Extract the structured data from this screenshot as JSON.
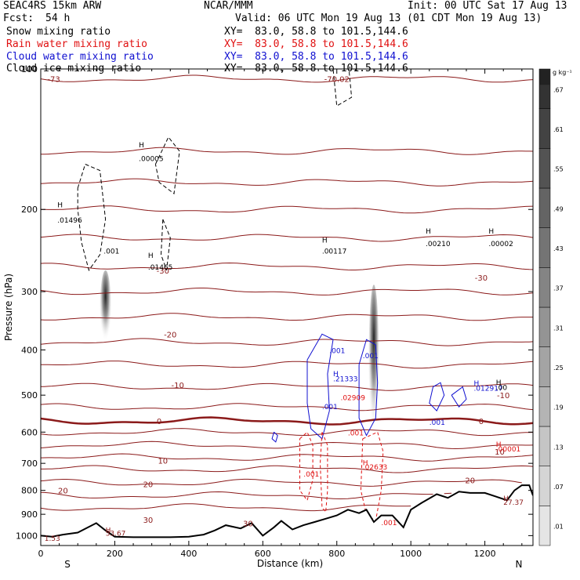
{
  "header": {
    "model": "SEAC4RS 15km ARW",
    "org": "NCAR/MMM",
    "init": "Init: 00 UTC Sat 17 Aug 13",
    "fcst_label": "Fcst:",
    "fcst_value": "54 h",
    "valid": "Valid: 06 UTC Mon 19 Aug 13 (01 CDT Mon 19 Aug 13)",
    "fields": [
      {
        "name": "Snow mixing ratio",
        "xy": "XY=  83.0, 58.8 to 101.5,144.6",
        "color": "#000000"
      },
      {
        "name": "Rain water mixing ratio",
        "xy": "XY=  83.0, 58.8 to 101.5,144.6",
        "color": "#e01010"
      },
      {
        "name": "Cloud water mixing ratio",
        "xy": "XY=  83.0, 58.8 to 101.5,144.6",
        "color": "#1010d0"
      },
      {
        "name": "Cloud ice mixing ratio",
        "xy": "XY=  83.0, 58.8 to 101.5,144.6",
        "color": "#000000"
      }
    ]
  },
  "chart_data": {
    "type": "line",
    "xlabel": "Distance (km)",
    "ylabel": "Pressure (hPa)",
    "xlim": [
      0,
      1330
    ],
    "ylim": [
      1050,
      100
    ],
    "y_scale": "log",
    "xticks": [
      0,
      200,
      400,
      600,
      800,
      1000,
      1200
    ],
    "yticks": [
      100,
      200,
      300,
      400,
      500,
      600,
      700,
      800,
      900,
      1000
    ],
    "ytick_labels": [
      "100",
      "200",
      "300",
      "400",
      "500",
      "600",
      "700",
      "800",
      "900",
      "1000"
    ],
    "xticks_minor_step": 50,
    "end_labels": {
      "left": "S",
      "right": "N"
    },
    "temperature_labels": [
      {
        "x": 35,
        "p": 105,
        "text": "-73"
      },
      {
        "x": 800,
        "p": 105,
        "text": "-70.02"
      },
      {
        "x": 330,
        "p": 270,
        "text": "-30"
      },
      {
        "x": 1190,
        "p": 280,
        "text": "-30"
      },
      {
        "x": 350,
        "p": 370,
        "text": "-20"
      },
      {
        "x": 370,
        "p": 475,
        "text": "-10"
      },
      {
        "x": 1250,
        "p": 500,
        "text": "-10"
      },
      {
        "x": 320,
        "p": 568,
        "text": "0"
      },
      {
        "x": 1190,
        "p": 568,
        "text": "0"
      },
      {
        "x": 330,
        "p": 690,
        "text": "10"
      },
      {
        "x": 1240,
        "p": 660,
        "text": "10"
      },
      {
        "x": 290,
        "p": 775,
        "text": "20"
      },
      {
        "x": 1160,
        "p": 760,
        "text": "20"
      },
      {
        "x": 60,
        "p": 800,
        "text": "20"
      },
      {
        "x": 290,
        "p": 925,
        "text": "30"
      },
      {
        "x": 560,
        "p": 940,
        "text": "30"
      }
    ],
    "temperature_isotherm_p_left": [
      105,
      150,
      175,
      200,
      230,
      265,
      300,
      340,
      385,
      430,
      480,
      530,
      568,
      600,
      640,
      680,
      720,
      770,
      820,
      870
    ],
    "freezing_level_p": 568,
    "terrain": {
      "x": [
        0,
        30,
        60,
        100,
        150,
        175,
        200,
        250,
        300,
        350,
        400,
        440,
        470,
        500,
        540,
        570,
        600,
        630,
        650,
        680,
        710,
        740,
        770,
        800,
        830,
        860,
        880,
        900,
        920,
        950,
        980,
        1000,
        1030,
        1070,
        1100,
        1130,
        1160,
        1200,
        1230,
        1260,
        1280,
        1300,
        1320,
        1330
      ],
      "p": [
        1000,
        1005,
        995,
        985,
        940,
        975,
        1005,
        1008,
        1008,
        1008,
        1005,
        995,
        975,
        950,
        965,
        940,
        1000,
        960,
        930,
        970,
        950,
        935,
        920,
        905,
        880,
        895,
        880,
        935,
        905,
        905,
        960,
        880,
        850,
        815,
        830,
        805,
        810,
        810,
        825,
        840,
        800,
        780,
        780,
        820
      ]
    },
    "snow_plumes": [
      {
        "x": 175,
        "p_top": 270,
        "p_bottom": 390,
        "width_km": 30
      },
      {
        "x": 900,
        "p_top": 290,
        "p_bottom": 620,
        "width_km": 28
      }
    ],
    "cloud_ice_contours": [
      {
        "points": [
          [
            100,
            180
          ],
          [
            120,
            160
          ],
          [
            160,
            165
          ],
          [
            175,
            210
          ],
          [
            160,
            250
          ],
          [
            130,
            270
          ],
          [
            110,
            235
          ],
          [
            100,
            200
          ],
          [
            100,
            180
          ]
        ]
      },
      {
        "points": [
          [
            310,
            160
          ],
          [
            345,
            140
          ],
          [
            375,
            150
          ],
          [
            360,
            185
          ],
          [
            320,
            175
          ],
          [
            310,
            160
          ]
        ]
      },
      {
        "points": [
          [
            790,
            100
          ],
          [
            830,
            95
          ],
          [
            840,
            115
          ],
          [
            800,
            120
          ],
          [
            790,
            100
          ]
        ]
      },
      {
        "points": [
          [
            330,
            210
          ],
          [
            350,
            230
          ],
          [
            340,
            270
          ],
          [
            325,
            250
          ],
          [
            330,
            210
          ]
        ]
      }
    ],
    "cloud_water_contours": [
      {
        "points": [
          [
            720,
            420
          ],
          [
            760,
            370
          ],
          [
            790,
            380
          ],
          [
            775,
            450
          ],
          [
            780,
            540
          ],
          [
            760,
            620
          ],
          [
            730,
            590
          ],
          [
            720,
            520
          ],
          [
            720,
            420
          ]
        ]
      },
      {
        "points": [
          [
            860,
            430
          ],
          [
            880,
            380
          ],
          [
            905,
            390
          ],
          [
            910,
            470
          ],
          [
            905,
            560
          ],
          [
            880,
            610
          ],
          [
            860,
            560
          ],
          [
            860,
            430
          ]
        ]
      },
      {
        "points": [
          [
            1060,
            480
          ],
          [
            1080,
            470
          ],
          [
            1090,
            500
          ],
          [
            1070,
            540
          ],
          [
            1050,
            520
          ],
          [
            1060,
            480
          ]
        ]
      },
      {
        "points": [
          [
            1110,
            500
          ],
          [
            1140,
            480
          ],
          [
            1150,
            510
          ],
          [
            1130,
            530
          ],
          [
            1110,
            500
          ]
        ]
      },
      {
        "points": [
          [
            630,
            600
          ],
          [
            640,
            610
          ],
          [
            635,
            630
          ],
          [
            625,
            620
          ],
          [
            630,
            600
          ]
        ]
      }
    ],
    "rain_water_contours": [
      {
        "points": [
          [
            700,
            620
          ],
          [
            720,
            600
          ],
          [
            735,
            640
          ],
          [
            735,
            760
          ],
          [
            720,
            840
          ],
          [
            700,
            800
          ],
          [
            700,
            620
          ]
        ]
      },
      {
        "points": [
          [
            760,
            600
          ],
          [
            775,
            640
          ],
          [
            775,
            800
          ],
          [
            770,
            890
          ],
          [
            760,
            870
          ],
          [
            755,
            700
          ],
          [
            760,
            600
          ]
        ]
      },
      {
        "points": [
          [
            870,
            620
          ],
          [
            910,
            600
          ],
          [
            925,
            660
          ],
          [
            920,
            800
          ],
          [
            905,
            930
          ],
          [
            880,
            900
          ],
          [
            865,
            800
          ],
          [
            870,
            620
          ]
        ]
      }
    ],
    "annotations": [
      {
        "x": 265,
        "p": 145,
        "text": "H",
        "color": "#000000"
      },
      {
        "x": 265,
        "p": 155,
        "text": ".00005",
        "color": "#000000"
      },
      {
        "x": 45,
        "p": 195,
        "text": "H",
        "color": "#000000"
      },
      {
        "x": 45,
        "p": 210,
        "text": ".01496",
        "color": "#000000"
      },
      {
        "x": 170,
        "p": 245,
        "text": ".001",
        "color": "#000000"
      },
      {
        "x": 290,
        "p": 250,
        "text": "H",
        "color": "#000000"
      },
      {
        "x": 290,
        "p": 265,
        "text": ".01465",
        "color": "#000000"
      },
      {
        "x": 760,
        "p": 232,
        "text": "H",
        "color": "#000000"
      },
      {
        "x": 760,
        "p": 245,
        "text": ".00117",
        "color": "#000000"
      },
      {
        "x": 1040,
        "p": 222,
        "text": "H",
        "color": "#000000"
      },
      {
        "x": 1040,
        "p": 236,
        "text": ".00210",
        "color": "#000000"
      },
      {
        "x": 1210,
        "p": 222,
        "text": "H",
        "color": "#000000"
      },
      {
        "x": 1210,
        "p": 236,
        "text": ".00002",
        "color": "#000000"
      },
      {
        "x": 780,
        "p": 400,
        "text": ".001",
        "color": "#1010d0"
      },
      {
        "x": 790,
        "p": 448,
        "text": "H",
        "color": "#1010d0"
      },
      {
        "x": 790,
        "p": 460,
        "text": ".21333",
        "color": "#1010d0"
      },
      {
        "x": 760,
        "p": 527,
        "text": ".001",
        "color": "#1010d0"
      },
      {
        "x": 870,
        "p": 410,
        "text": ".001",
        "color": "#1010d0"
      },
      {
        "x": 1050,
        "p": 570,
        "text": ".001",
        "color": "#1010d0"
      },
      {
        "x": 1170,
        "p": 470,
        "text": "H",
        "color": "#1010d0"
      },
      {
        "x": 1170,
        "p": 482,
        "text": ".012917",
        "color": "#1010d0"
      },
      {
        "x": 1230,
        "p": 468,
        "text": "H",
        "color": "#000000"
      },
      {
        "x": 1230,
        "p": 480,
        "text": ".00",
        "color": "#000000"
      },
      {
        "x": 810,
        "p": 505,
        "text": ".02909",
        "color": "#e01010"
      },
      {
        "x": 830,
        "p": 600,
        "text": ".001",
        "color": "#e01010"
      },
      {
        "x": 710,
        "p": 735,
        "text": ".001",
        "color": "#e01010"
      },
      {
        "x": 870,
        "p": 695,
        "text": "H",
        "color": "#e01010"
      },
      {
        "x": 870,
        "p": 710,
        "text": ".02633",
        "color": "#e01010"
      },
      {
        "x": 1230,
        "p": 635,
        "text": "H",
        "color": "#e01010"
      },
      {
        "x": 1230,
        "p": 650,
        "text": ".00001",
        "color": "#e01010"
      },
      {
        "x": 920,
        "p": 935,
        "text": ".001",
        "color": "#e01010"
      },
      {
        "x": 175,
        "p": 970,
        "text": "H",
        "color": "#8b1a1a"
      },
      {
        "x": 175,
        "p": 985,
        "text": "33.67",
        "color": "#8b1a1a"
      },
      {
        "x": 1250,
        "p": 830,
        "text": "H",
        "color": "#8b1a1a"
      },
      {
        "x": 1250,
        "p": 845,
        "text": "27.37",
        "color": "#8b1a1a"
      },
      {
        "x": 10,
        "p": 1010,
        "text": "1.53",
        "color": "#8b1a1a"
      }
    ]
  },
  "colorbar": {
    "unit": "g kg⁻¹",
    "levels": [
      ".01",
      ".07",
      ".13",
      ".19",
      ".25",
      ".31",
      ".37",
      ".43",
      ".49",
      ".55",
      ".61",
      ".67"
    ]
  }
}
